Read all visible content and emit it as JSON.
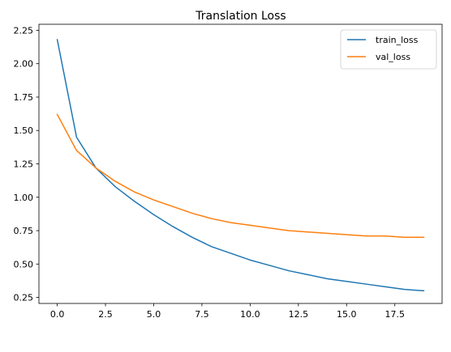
{
  "chart_data": {
    "type": "line",
    "title": "Translation Loss",
    "xlabel": "",
    "ylabel": "",
    "xlim": [
      -0.95,
      19.95
    ],
    "ylim": [
      0.205,
      2.295
    ],
    "xticks": [
      0.0,
      2.5,
      5.0,
      7.5,
      10.0,
      12.5,
      15.0,
      17.5
    ],
    "xtick_labels": [
      "0.0",
      "2.5",
      "5.0",
      "7.5",
      "10.0",
      "12.5",
      "15.0",
      "17.5"
    ],
    "yticks": [
      0.25,
      0.5,
      0.75,
      1.0,
      1.25,
      1.5,
      1.75,
      2.0,
      2.25
    ],
    "ytick_labels": [
      "0.25",
      "0.50",
      "0.75",
      "1.00",
      "1.25",
      "1.50",
      "1.75",
      "2.00",
      "2.25"
    ],
    "grid": false,
    "legend_position": "top-right",
    "x": [
      0,
      1,
      2,
      3,
      4,
      5,
      6,
      7,
      8,
      9,
      10,
      11,
      12,
      13,
      14,
      15,
      16,
      17,
      18,
      19
    ],
    "series": [
      {
        "name": "train_loss",
        "color": "#1f77b4",
        "values": [
          2.18,
          1.45,
          1.22,
          1.08,
          0.97,
          0.87,
          0.78,
          0.7,
          0.63,
          0.58,
          0.53,
          0.49,
          0.45,
          0.42,
          0.39,
          0.37,
          0.35,
          0.33,
          0.31,
          0.3
        ]
      },
      {
        "name": "val_loss",
        "color": "#ff7f0e",
        "values": [
          1.62,
          1.35,
          1.22,
          1.12,
          1.04,
          0.98,
          0.93,
          0.88,
          0.84,
          0.81,
          0.79,
          0.77,
          0.75,
          0.74,
          0.73,
          0.72,
          0.71,
          0.71,
          0.7,
          0.7
        ]
      }
    ]
  }
}
